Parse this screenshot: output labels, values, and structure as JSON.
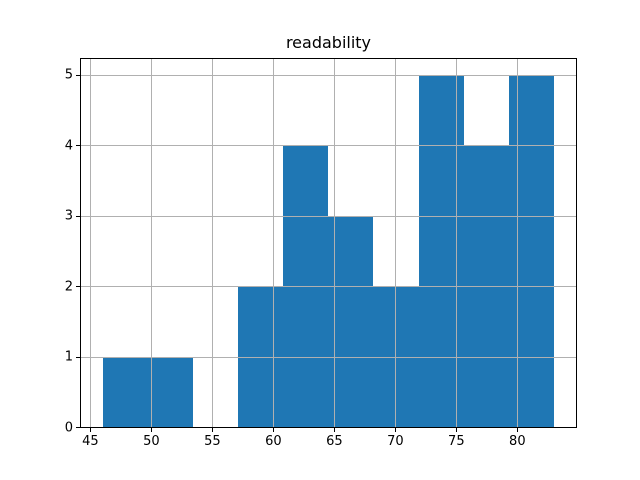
{
  "chart_data": {
    "type": "bar",
    "subtype": "histogram",
    "title": "readability",
    "bin_edges": [
      46.0,
      49.7,
      53.4,
      57.1,
      60.8,
      64.5,
      68.2,
      71.9,
      75.6,
      79.3,
      83.0
    ],
    "values": [
      1,
      1,
      0,
      2,
      4,
      3,
      2,
      5,
      4,
      5
    ],
    "xlabel": "",
    "ylabel": "",
    "xticks": [
      45,
      50,
      55,
      60,
      65,
      70,
      75,
      80
    ],
    "yticks": [
      0,
      1,
      2,
      3,
      4,
      5
    ],
    "xlim": [
      44.15,
      84.85
    ],
    "ylim": [
      0,
      5.25
    ],
    "grid": true,
    "grid_above_bars": true,
    "legend": null,
    "bar_color": "#1f77b4",
    "grid_color": "#b0b0b0",
    "frame_color": "#000000",
    "text_color": "#000000",
    "background_color": "#ffffff"
  }
}
